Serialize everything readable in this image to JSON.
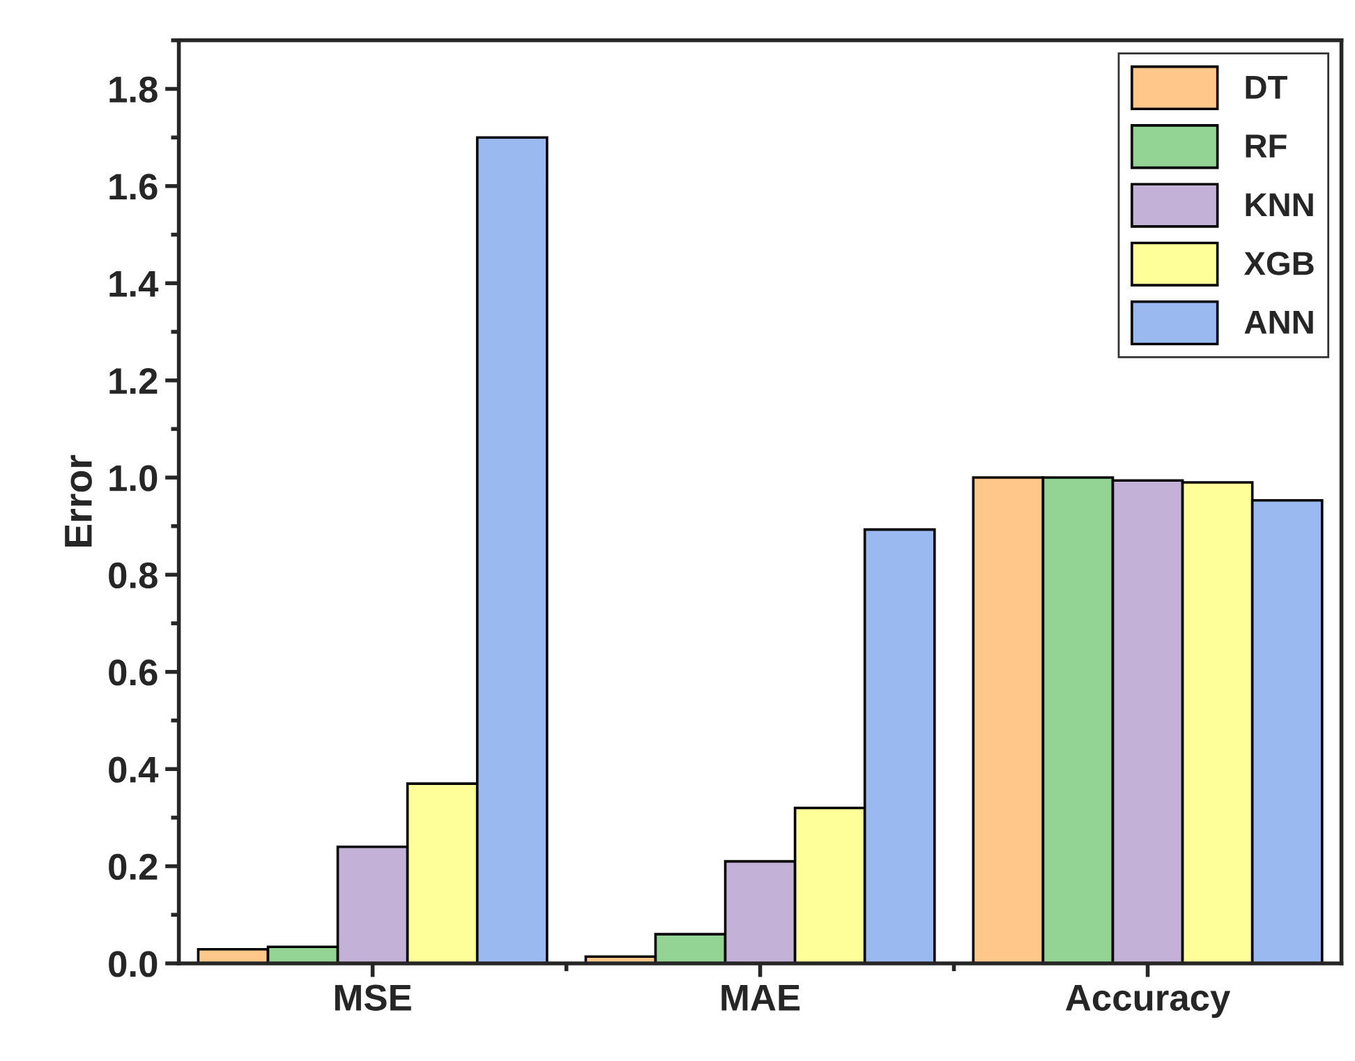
{
  "chart_data": {
    "type": "bar",
    "ylabel": "Error",
    "categories": [
      "MSE",
      "MAE",
      "Accuracy"
    ],
    "series": [
      {
        "name": "DT",
        "color": "#ffc88a",
        "values": [
          0.029,
          0.014,
          1.0
        ]
      },
      {
        "name": "RF",
        "color": "#93d393",
        "values": [
          0.034,
          0.06,
          1.0
        ]
      },
      {
        "name": "KNN",
        "color": "#c4b1d8",
        "values": [
          0.24,
          0.21,
          0.994
        ]
      },
      {
        "name": "XGB",
        "color": "#ffff99",
        "values": [
          0.37,
          0.32,
          0.99
        ]
      },
      {
        "name": "ANN",
        "color": "#9ab9f0",
        "values": [
          1.7,
          0.893,
          0.953
        ]
      }
    ],
    "ylim": [
      0,
      1.9
    ],
    "yticks": [
      {
        "value": 0,
        "label": "0.0"
      },
      0.2,
      0.4,
      0.6,
      0.8,
      {
        "value": 1,
        "label": "1.0"
      },
      1.2,
      1.4,
      1.6,
      1.8
    ],
    "grid": false,
    "legend": "top right"
  }
}
